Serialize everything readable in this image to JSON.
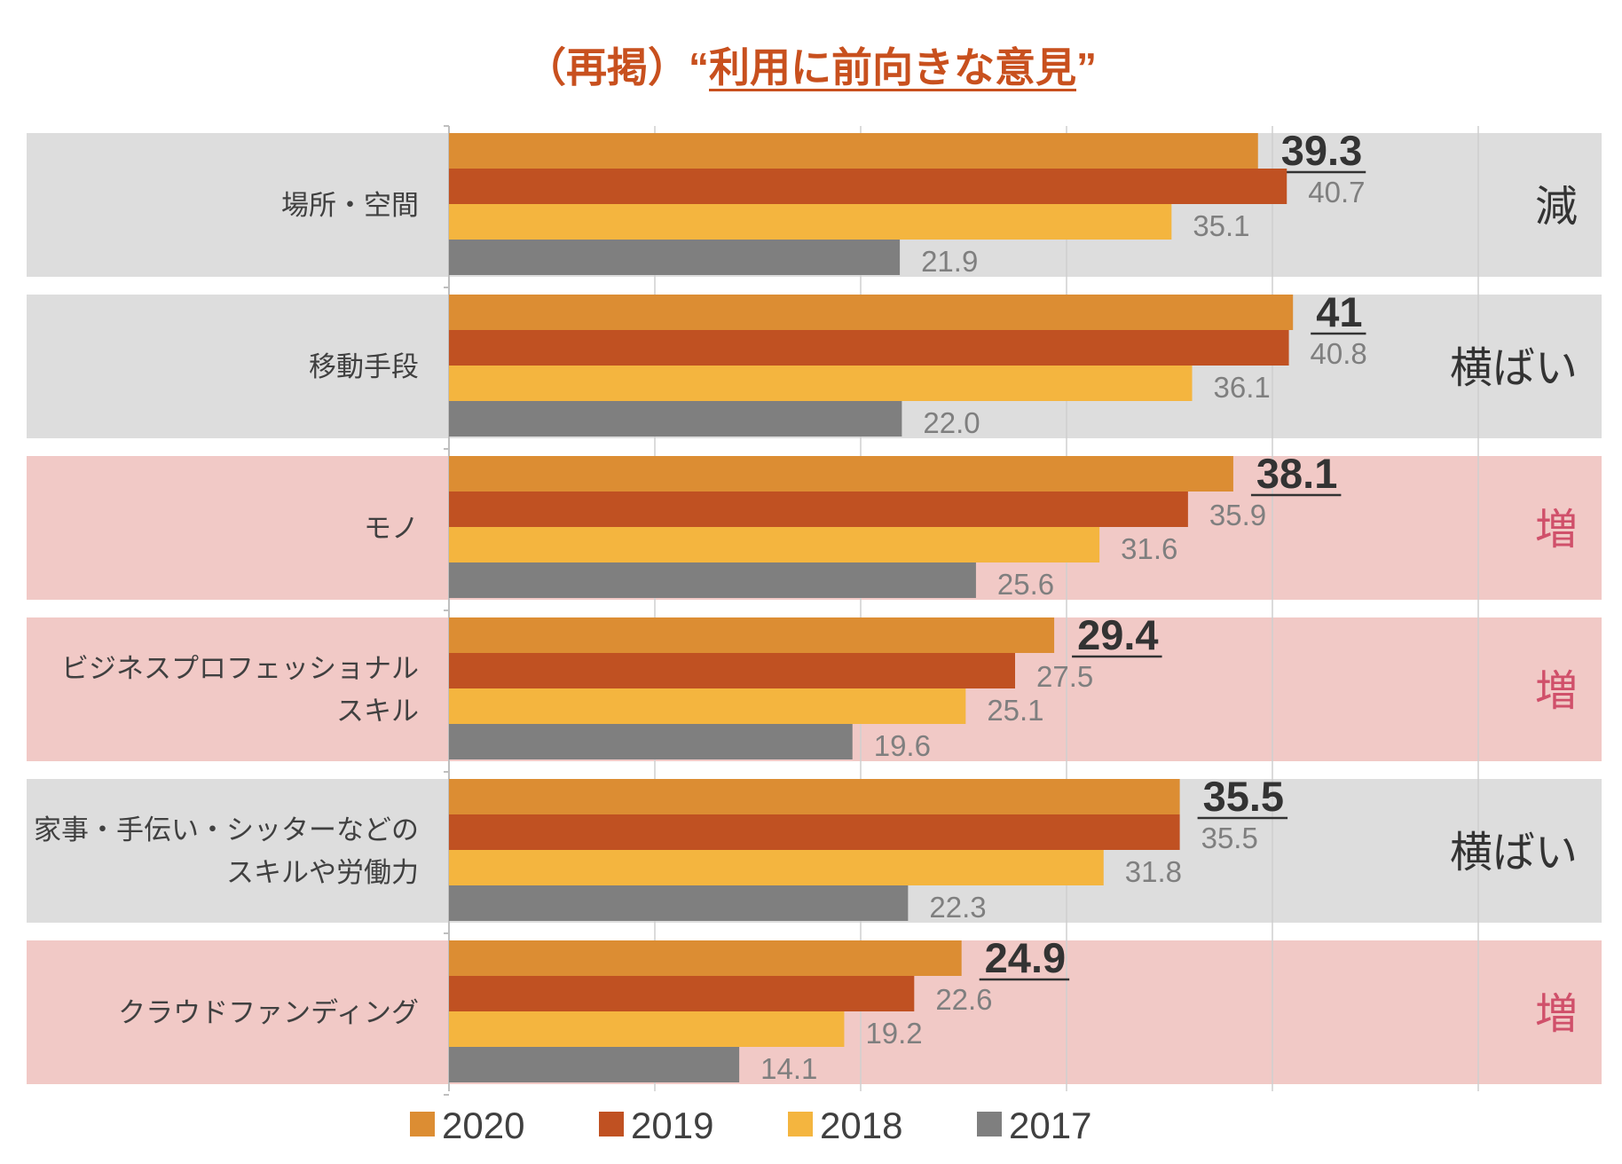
{
  "chart_data": {
    "type": "bar",
    "orientation": "horizontal",
    "title_prefix": "（再掲）“",
    "title_main": "利用に前向きな意見",
    "title_suffix": "”",
    "categories": [
      [
        "場所・空間"
      ],
      [
        "移動手段"
      ],
      [
        "モノ"
      ],
      [
        "ビジネスプロフェッショナル",
        "スキル"
      ],
      [
        "家事・手伝い・シッターなどの",
        "スキルや労働力"
      ],
      [
        "クラウドファンディング"
      ]
    ],
    "series": [
      {
        "name": "2020",
        "color": "#dc8d33",
        "values": [
          39.3,
          41,
          38.1,
          29.4,
          35.5,
          24.9
        ]
      },
      {
        "name": "2019",
        "color": "#c05122",
        "values": [
          40.7,
          40.8,
          35.9,
          27.5,
          35.5,
          22.6
        ]
      },
      {
        "name": "2018",
        "color": "#f4b53f",
        "values": [
          35.1,
          36.1,
          31.6,
          25.1,
          31.8,
          19.2
        ]
      },
      {
        "name": "2017",
        "color": "#7f7f7f",
        "values": [
          21.9,
          22.0,
          25.6,
          19.6,
          22.3,
          14.1
        ]
      }
    ],
    "value_labels": [
      [
        "39.3",
        "40.7",
        "35.1",
        "21.9"
      ],
      [
        "41",
        "40.8",
        "36.1",
        "22.0"
      ],
      [
        "38.1",
        "35.9",
        "31.6",
        "25.6"
      ],
      [
        "29.4",
        "27.5",
        "25.1",
        "19.6"
      ],
      [
        "35.5",
        "35.5",
        "31.8",
        "22.3"
      ],
      [
        "24.9",
        "22.6",
        "19.2",
        "14.1"
      ]
    ],
    "trends": [
      {
        "label": "減",
        "kind": "neutral"
      },
      {
        "label": "横ばい",
        "kind": "neutral"
      },
      {
        "label": "増",
        "kind": "increase"
      },
      {
        "label": "増",
        "kind": "increase"
      },
      {
        "label": "横ばい",
        "kind": "neutral"
      },
      {
        "label": "増",
        "kind": "increase"
      }
    ],
    "trend_colors": {
      "neutral": "#333333",
      "increase": "#d0506a"
    },
    "band_colors": {
      "neutral": "#dddddd",
      "increase": "#f1c9c6"
    },
    "xlim": [
      0,
      50
    ],
    "grid": true,
    "legend_position": "bottom"
  }
}
